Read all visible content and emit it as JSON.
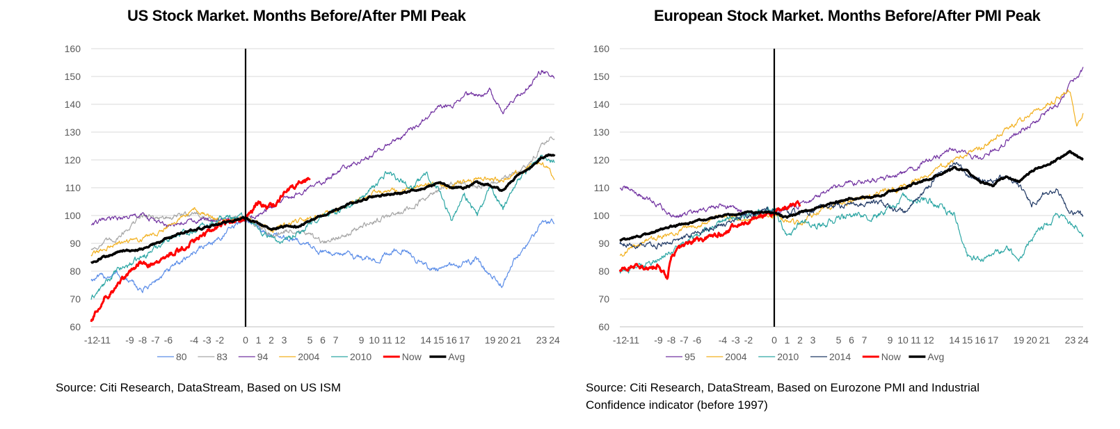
{
  "source_us": "Source: Citi Research, DataStream, Based on US ISM",
  "source_eu": [
    "Source: Citi Research, DataStream, Based on Eurozone PMI and Industrial",
    "Confidence indicator (before 1997)"
  ],
  "chart_data": [
    {
      "type": "line",
      "title": "US Stock Market. Months Before/After PMI Peak",
      "xlabel": "",
      "ylabel": "",
      "ylim": [
        60,
        160
      ],
      "yticks": [
        60,
        70,
        80,
        90,
        100,
        110,
        120,
        130,
        140,
        150,
        160
      ],
      "xlim": [
        -12,
        24
      ],
      "xtick_labels": [
        "-12",
        "-11",
        "-9",
        "-8",
        "-7",
        "-6",
        "-4",
        "-3",
        "-2",
        "0",
        "1",
        "2",
        "3",
        "5",
        "6",
        "7",
        "9",
        "10",
        "11",
        "12",
        "14",
        "15",
        "16",
        "17",
        "19",
        "20",
        "21",
        "23",
        "24"
      ],
      "xtick_positions": [
        -12,
        -11,
        -9,
        -8,
        -7,
        -6,
        -4,
        -3,
        -2,
        0,
        1,
        2,
        3,
        5,
        6,
        7,
        9,
        10,
        11,
        12,
        14,
        15,
        16,
        17,
        19,
        20,
        21,
        23,
        24
      ],
      "grid": true,
      "vline_at": 0,
      "legend": "bottom",
      "series": [
        {
          "name": "80",
          "color": "#5B8DE8",
          "width": 1.2,
          "noise": 1.4,
          "x": [
            -12,
            -10,
            -8,
            -6,
            -4,
            -2,
            0,
            2,
            4,
            6,
            8,
            10,
            12,
            14,
            15,
            16,
            18,
            19,
            20,
            21,
            22,
            23,
            24
          ],
          "y": [
            77,
            79,
            73,
            80,
            87,
            92,
            99,
            93,
            91,
            87,
            86,
            84,
            88,
            82,
            80,
            82,
            84,
            78,
            75,
            85,
            90,
            98,
            98
          ]
        },
        {
          "name": "83",
          "color": "#A6A6A6",
          "width": 1.2,
          "noise": 1.3,
          "x": [
            -12,
            -10,
            -8,
            -6,
            -4,
            -2,
            0,
            2,
            4,
            6,
            7,
            8,
            10,
            12,
            14,
            16,
            18,
            20,
            22,
            23,
            24
          ],
          "y": [
            88,
            92,
            100,
            99,
            101,
            97,
            100,
            93,
            95,
            90,
            92,
            94,
            98,
            101,
            106,
            112,
            110,
            113,
            118,
            125,
            129
          ]
        },
        {
          "name": "94",
          "color": "#7030A0",
          "width": 1.2,
          "noise": 1.2,
          "x": [
            -12,
            -10,
            -8,
            -6,
            -4,
            -2,
            0,
            2,
            4,
            6,
            8,
            10,
            12,
            14,
            15,
            16,
            17,
            18,
            19,
            20,
            21,
            22,
            23,
            24
          ],
          "y": [
            97,
            99,
            100,
            96,
            98,
            99,
            98,
            103,
            108,
            112,
            118,
            122,
            128,
            135,
            140,
            139,
            144,
            143,
            145,
            137,
            143,
            146,
            152,
            150
          ]
        },
        {
          "name": "2004",
          "color": "#F2B01E",
          "width": 1.2,
          "noise": 1.2,
          "x": [
            -12,
            -10,
            -8,
            -6,
            -4,
            -2,
            0,
            2,
            4,
            6,
            8,
            10,
            12,
            14,
            16,
            18,
            20,
            22,
            23,
            24
          ],
          "y": [
            86,
            90,
            92,
            96,
            102,
            98,
            99,
            95,
            98,
            100,
            104,
            108,
            109,
            111,
            111,
            113,
            113,
            117,
            119,
            114
          ]
        },
        {
          "name": "2010",
          "color": "#2CA6A4",
          "width": 1.2,
          "noise": 1.5,
          "x": [
            -12,
            -10,
            -8,
            -6,
            -4,
            -2,
            0,
            1,
            2,
            3,
            4,
            6,
            8,
            10,
            11,
            12,
            13,
            14,
            15,
            16,
            17,
            18,
            19,
            20,
            21,
            22,
            23,
            24
          ],
          "y": [
            70,
            80,
            85,
            92,
            95,
            99,
            100,
            95,
            92,
            90,
            93,
            100,
            103,
            110,
            116,
            113,
            110,
            115,
            110,
            98,
            108,
            100,
            110,
            103,
            112,
            117,
            121,
            120
          ]
        },
        {
          "name": "Now",
          "color": "#FF0000",
          "width": 3,
          "noise": 1.3,
          "x": [
            -12,
            -11,
            -10,
            -9,
            -8,
            -7,
            -6,
            -5,
            -4,
            -3,
            -2,
            -1,
            0,
            1,
            2,
            3,
            4,
            5
          ],
          "y": [
            62,
            70,
            74,
            80,
            83,
            82,
            86,
            88,
            91,
            94,
            97,
            98,
            99,
            105,
            103,
            108,
            111,
            113
          ]
        },
        {
          "name": "Avg",
          "color": "#000000",
          "width": 3.5,
          "noise": 0.5,
          "x": [
            -12,
            -10,
            -8,
            -6,
            -4,
            -2,
            0,
            1,
            2,
            3,
            4,
            6,
            8,
            10,
            12,
            14,
            15,
            16,
            17,
            18,
            19,
            20,
            21,
            22,
            23,
            24
          ],
          "y": [
            83,
            87,
            88,
            92,
            95,
            97,
            99,
            97,
            95,
            96,
            96,
            100,
            104,
            107,
            108,
            110,
            112,
            110,
            110,
            112,
            111,
            109,
            114,
            117,
            121,
            122
          ]
        }
      ]
    },
    {
      "type": "line",
      "title": "European Stock Market. Months Before/After PMI Peak",
      "xlabel": "",
      "ylabel": "",
      "ylim": [
        60,
        160
      ],
      "yticks": [
        60,
        70,
        80,
        90,
        100,
        110,
        120,
        130,
        140,
        150,
        160
      ],
      "xlim": [
        -12,
        24
      ],
      "xtick_labels": [
        "-12",
        "-11",
        "-9",
        "-8",
        "-7",
        "-6",
        "-4",
        "-3",
        "-2",
        "0",
        "1",
        "2",
        "3",
        "5",
        "6",
        "7",
        "9",
        "10",
        "11",
        "12",
        "14",
        "15",
        "16",
        "17",
        "19",
        "20",
        "21",
        "23",
        "24"
      ],
      "xtick_positions": [
        -12,
        -11,
        -9,
        -8,
        -7,
        -6,
        -4,
        -3,
        -2,
        0,
        1,
        2,
        3,
        5,
        6,
        7,
        9,
        10,
        11,
        12,
        14,
        15,
        16,
        17,
        19,
        20,
        21,
        23,
        24
      ],
      "grid": true,
      "vline_at": 0,
      "legend": "bottom",
      "series": [
        {
          "name": "95",
          "color": "#7030A0",
          "width": 1.2,
          "noise": 1.3,
          "x": [
            -12,
            -11,
            -10,
            -9,
            -8,
            -6,
            -4,
            -2,
            0,
            2,
            4,
            6,
            8,
            10,
            12,
            14,
            16,
            17,
            18,
            20,
            22,
            23,
            24
          ],
          "y": [
            110,
            109,
            106,
            104,
            100,
            101,
            104,
            101,
            101,
            104,
            108,
            112,
            113,
            115,
            120,
            124,
            120,
            123,
            127,
            133,
            140,
            147,
            152
          ]
        },
        {
          "name": "2004",
          "color": "#F2B01E",
          "width": 1.2,
          "noise": 1.3,
          "x": [
            -12,
            -10,
            -8,
            -6,
            -4,
            -2,
            0,
            2,
            4,
            6,
            8,
            10,
            12,
            14,
            16,
            18,
            20,
            22,
            23,
            23.5,
            24
          ],
          "y": [
            86,
            91,
            93,
            97,
            100,
            99,
            100,
            97,
            103,
            105,
            108,
            110,
            115,
            120,
            124,
            131,
            137,
            142,
            145,
            132,
            136
          ]
        },
        {
          "name": "2010",
          "color": "#2CA6A4",
          "width": 1.2,
          "noise": 1.6,
          "x": [
            -12,
            -10,
            -8,
            -6,
            -4,
            -2,
            0,
            1,
            2,
            4,
            6,
            8,
            10,
            12,
            14,
            15,
            16,
            17,
            18,
            19,
            20,
            22,
            24
          ],
          "y": [
            80,
            82,
            87,
            93,
            98,
            100,
            103,
            92,
            97,
            97,
            100,
            100,
            106,
            106,
            100,
            85,
            84,
            85,
            89,
            84,
            92,
            100,
            94
          ]
        },
        {
          "name": "2014",
          "color": "#1F3864",
          "width": 1.2,
          "noise": 1.4,
          "x": [
            -12,
            -10,
            -8,
            -6,
            -4,
            -2,
            0,
            2,
            4,
            6,
            8,
            10,
            11,
            12,
            13,
            14,
            15,
            16,
            17,
            18,
            19,
            20,
            21,
            22,
            23,
            24
          ],
          "y": [
            90,
            89,
            90,
            94,
            97,
            100,
            102,
            101,
            103,
            104,
            105,
            101,
            105,
            110,
            116,
            119,
            115,
            113,
            112,
            115,
            111,
            104,
            108,
            109,
            101,
            100
          ]
        },
        {
          "name": "Now",
          "color": "#FF0000",
          "width": 3,
          "noise": 1.3,
          "x": [
            -12,
            -11,
            -10,
            -9,
            -8.3,
            -8,
            -7,
            -6,
            -5,
            -4,
            -3,
            -2,
            -1,
            0,
            1,
            2
          ],
          "y": [
            80,
            82,
            81,
            82,
            78,
            86,
            89,
            91,
            92,
            94,
            96,
            98,
            100,
            101,
            103,
            104
          ]
        },
        {
          "name": "Avg",
          "color": "#000000",
          "width": 3.5,
          "noise": 0.5,
          "x": [
            -12,
            -10,
            -8,
            -6,
            -4,
            -2,
            0,
            1,
            2,
            4,
            6,
            8,
            10,
            12,
            14,
            15,
            16,
            17,
            18,
            19,
            20,
            22,
            23,
            24
          ],
          "y": [
            91,
            93,
            96,
            98,
            100,
            101,
            101,
            99,
            101,
            104,
            106,
            107,
            110,
            113,
            117,
            116,
            112,
            111,
            114,
            112,
            116,
            120,
            123,
            120
          ]
        }
      ]
    }
  ]
}
